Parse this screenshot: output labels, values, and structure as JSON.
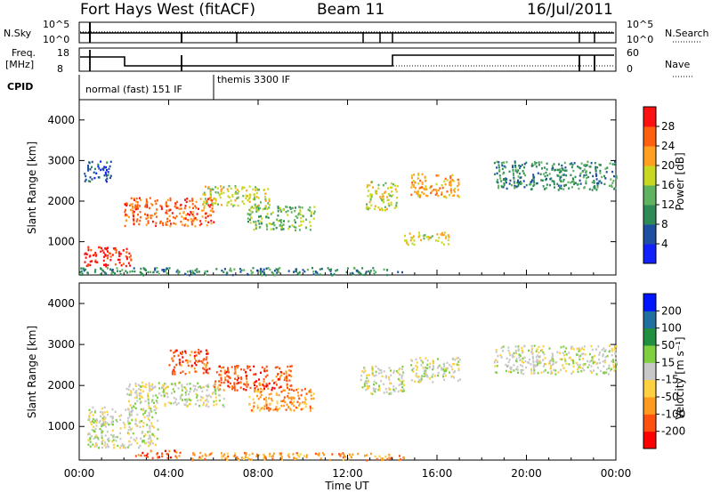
{
  "header": {
    "title": "Fort Hays West (fitACF)",
    "beam": "Beam 11",
    "date": "16/Jul/2011"
  },
  "summary_panels": {
    "nsky_label": "N.Sky",
    "nsearch_label": "N.Search",
    "noise_ticks": [
      "10^5",
      "10^0"
    ],
    "freq_label": "Freq.",
    "freq_unit": "[MHz]",
    "freq_ticks": [
      "18",
      "8"
    ],
    "nave_label": "Nave",
    "nave_ticks": [
      "60",
      "0"
    ],
    "cpid_label": "CPID",
    "cpid_segments": [
      {
        "label": "normal (fast) 151 IF",
        "start_hour": 0.0,
        "end_hour": 6.0
      },
      {
        "label": "themis 3300 IF",
        "start_hour": 6.0,
        "end_hour": 24.0
      }
    ]
  },
  "colors": {
    "power_scale": [
      "#1020ff",
      "#1f4fa0",
      "#2e8b57",
      "#5fb25f",
      "#c8d820",
      "#ffa020",
      "#ff6010",
      "#ff1010"
    ],
    "velocity_scale": [
      "#0015ff",
      "#1f6f9f",
      "#208f3f",
      "#7fd040",
      "#c8c8c8",
      "#ffd040",
      "#ff9a20",
      "#ff5010",
      "#ff0000"
    ]
  },
  "chart_data": [
    {
      "type": "heatmap",
      "panel": "power",
      "xlabel": "",
      "ylabel": "Slant Range [km]",
      "xlim": [
        0,
        24
      ],
      "ylim": [
        180,
        4500
      ],
      "yticks": [
        "1000",
        "2000",
        "3000",
        "4000"
      ],
      "colorbar_label": "Power [dB]",
      "colorbar_ticks": [
        "4",
        "8",
        "12",
        "16",
        "20",
        "24",
        "28"
      ],
      "regions": [
        {
          "x0": 0.2,
          "x1": 2.3,
          "y0": 400,
          "y1": 900,
          "level": 7
        },
        {
          "x0": 2.0,
          "x1": 6.0,
          "y0": 1400,
          "y1": 2100,
          "level": 6
        },
        {
          "x0": 5.5,
          "x1": 8.5,
          "y0": 1900,
          "y1": 2400,
          "level": 4
        },
        {
          "x0": 7.5,
          "x1": 10.5,
          "y0": 1300,
          "y1": 1900,
          "level": 3
        },
        {
          "x0": 0.2,
          "x1": 1.4,
          "y0": 2500,
          "y1": 3000,
          "level": 1
        },
        {
          "x0": 12.8,
          "x1": 14.2,
          "y0": 1800,
          "y1": 2500,
          "level": 4
        },
        {
          "x0": 14.8,
          "x1": 17.0,
          "y0": 2100,
          "y1": 2700,
          "level": 5
        },
        {
          "x0": 18.5,
          "x1": 24.0,
          "y0": 2300,
          "y1": 3000,
          "level": 2
        },
        {
          "x0": 14.5,
          "x1": 16.5,
          "y0": 950,
          "y1": 1250,
          "level": 4
        },
        {
          "x0": 0.0,
          "x1": 14.5,
          "y0": 200,
          "y1": 380,
          "level": 2
        }
      ]
    },
    {
      "type": "heatmap",
      "panel": "velocity",
      "xlabel": "Time UT",
      "ylabel": "Slant Range [km]",
      "xlim": [
        0,
        24
      ],
      "ylim": [
        180,
        4500
      ],
      "xticks": [
        "00:00",
        "04:00",
        "08:00",
        "12:00",
        "16:00",
        "20:00",
        "00:00"
      ],
      "yticks": [
        "1000",
        "2000",
        "3000",
        "4000"
      ],
      "colorbar_label": "Velocity [m s⁻¹]",
      "colorbar_ticks": [
        "200",
        "100",
        "50",
        "15",
        "-15",
        "-50",
        "-100",
        "-200"
      ],
      "regions": [
        {
          "x0": 0.3,
          "x1": 3.5,
          "y0": 500,
          "y1": 1500,
          "level": 4
        },
        {
          "x0": 2.0,
          "x1": 6.5,
          "y0": 1500,
          "y1": 2100,
          "level": 4
        },
        {
          "x0": 4.0,
          "x1": 5.8,
          "y0": 2300,
          "y1": 2900,
          "level": 7
        },
        {
          "x0": 6.0,
          "x1": 9.5,
          "y0": 1900,
          "y1": 2500,
          "level": 7
        },
        {
          "x0": 7.5,
          "x1": 10.5,
          "y0": 1400,
          "y1": 1950,
          "level": 6
        },
        {
          "x0": 12.5,
          "x1": 14.5,
          "y0": 1800,
          "y1": 2500,
          "level": 4
        },
        {
          "x0": 14.8,
          "x1": 17.0,
          "y0": 2100,
          "y1": 2700,
          "level": 4
        },
        {
          "x0": 18.5,
          "x1": 24.0,
          "y0": 2300,
          "y1": 3000,
          "level": 4
        },
        {
          "x0": 2.5,
          "x1": 4.5,
          "y0": 250,
          "y1": 450,
          "level": 7
        },
        {
          "x0": 5.0,
          "x1": 14.5,
          "y0": 200,
          "y1": 380,
          "level": 6
        }
      ]
    }
  ]
}
